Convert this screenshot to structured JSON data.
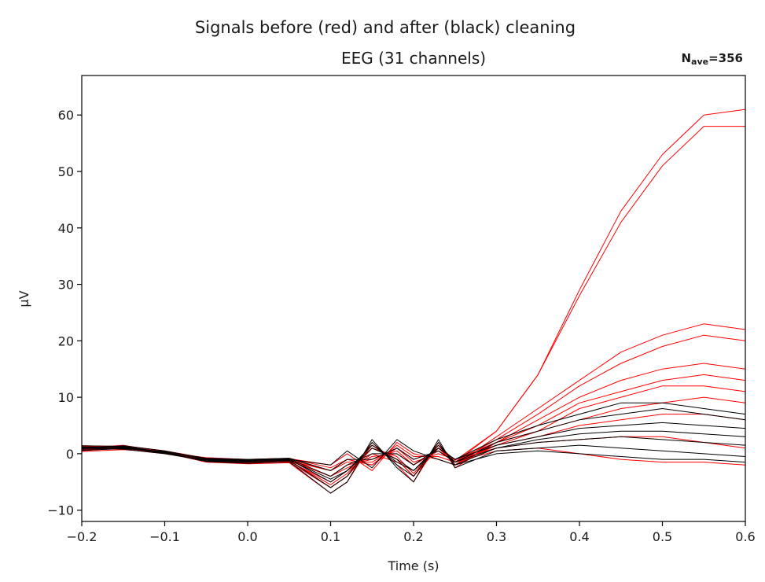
{
  "chart_data": {
    "type": "line",
    "suptitle": "Signals before (red) and after (black) cleaning",
    "title": "EEG (31 channels)",
    "nave_label": {
      "base": "N",
      "sub": "ave",
      "value": "=356"
    },
    "xlabel": "Time (s)",
    "ylabel": "µV",
    "xlim": [
      -0.2,
      0.6
    ],
    "ylim": [
      -12,
      67
    ],
    "xticks": [
      -0.2,
      -0.1,
      0.0,
      0.1,
      0.2,
      0.3,
      0.4,
      0.5,
      0.6
    ],
    "xtick_labels": [
      "−0.2",
      "−0.1",
      "0.0",
      "0.1",
      "0.2",
      "0.3",
      "0.4",
      "0.5",
      "0.6"
    ],
    "yticks": [
      -10,
      0,
      10,
      20,
      30,
      40,
      50,
      60
    ],
    "ytick_labels": [
      "−10",
      "0",
      "10",
      "20",
      "30",
      "40",
      "50",
      "60"
    ],
    "grid": false,
    "colors": {
      "before": "#ff0000",
      "after": "#000000"
    },
    "series": [
      {
        "name": "before",
        "color": "#ff0000",
        "x": [
          -0.2,
          -0.15,
          -0.1,
          -0.05,
          0.0,
          0.05,
          0.1,
          0.12,
          0.15,
          0.18,
          0.2,
          0.23,
          0.25,
          0.3,
          0.35,
          0.4,
          0.45,
          0.5,
          0.55,
          0.6
        ],
        "y": [
          1,
          1.5,
          0.3,
          -1.2,
          -1.5,
          -1.5,
          -6,
          -4,
          1,
          -1,
          -4,
          1,
          -1.5,
          4,
          14,
          29,
          43,
          53,
          60,
          61
        ]
      },
      {
        "name": "before",
        "color": "#ff0000",
        "x": [
          -0.2,
          -0.15,
          -0.1,
          -0.05,
          0.0,
          0.05,
          0.1,
          0.12,
          0.15,
          0.18,
          0.2,
          0.23,
          0.25,
          0.3,
          0.35,
          0.4,
          0.45,
          0.5,
          0.55,
          0.6
        ],
        "y": [
          0.8,
          1.2,
          0.2,
          -1.0,
          -1.2,
          -1.3,
          -5.5,
          -3.5,
          1,
          -0.5,
          -3.5,
          1.5,
          -1.2,
          4,
          14,
          28,
          41,
          51,
          58,
          58
        ]
      },
      {
        "name": "before",
        "color": "#ff0000",
        "x": [
          -0.2,
          -0.15,
          -0.1,
          -0.05,
          0.0,
          0.05,
          0.1,
          0.12,
          0.15,
          0.18,
          0.2,
          0.23,
          0.25,
          0.3,
          0.35,
          0.4,
          0.45,
          0.5,
          0.55,
          0.6
        ],
        "y": [
          1.2,
          1.0,
          0.1,
          -1.3,
          -1.6,
          -1.2,
          -4,
          -2,
          -1,
          0.5,
          -2,
          1,
          -2,
          3,
          8,
          13,
          18,
          21,
          23,
          22
        ]
      },
      {
        "name": "before",
        "color": "#ff0000",
        "x": [
          -0.2,
          -0.15,
          -0.1,
          -0.05,
          0.0,
          0.05,
          0.1,
          0.12,
          0.15,
          0.18,
          0.2,
          0.23,
          0.25,
          0.3,
          0.35,
          0.4,
          0.45,
          0.5,
          0.55,
          0.6
        ],
        "y": [
          0.5,
          1.1,
          0.4,
          -0.9,
          -1.4,
          -1.0,
          -3,
          -1,
          -2,
          1,
          -1,
          0.5,
          -1.5,
          2.5,
          7,
          12,
          16,
          19,
          21,
          20
        ]
      },
      {
        "name": "before",
        "color": "#ff0000",
        "x": [
          -0.2,
          -0.15,
          -0.1,
          -0.05,
          0.0,
          0.05,
          0.1,
          0.12,
          0.15,
          0.18,
          0.2,
          0.23,
          0.25,
          0.3,
          0.35,
          0.4,
          0.45,
          0.5,
          0.55,
          0.6
        ],
        "y": [
          1.4,
          1.3,
          0.2,
          -1.5,
          -1.8,
          -1.6,
          -7,
          -5,
          2,
          -2,
          -5,
          2,
          -2.5,
          2,
          6,
          10,
          13,
          15,
          16,
          15
        ]
      },
      {
        "name": "before",
        "color": "#ff0000",
        "x": [
          -0.2,
          -0.15,
          -0.1,
          -0.05,
          0.0,
          0.05,
          0.1,
          0.12,
          0.15,
          0.18,
          0.2,
          0.23,
          0.25,
          0.3,
          0.35,
          0.4,
          0.45,
          0.5,
          0.55,
          0.6
        ],
        "y": [
          0.6,
          0.9,
          0.3,
          -1.1,
          -1.3,
          -1.4,
          -5,
          -3,
          0,
          -1.5,
          -3,
          1,
          -1,
          2,
          5,
          9,
          11,
          13,
          14,
          13
        ]
      },
      {
        "name": "before",
        "color": "#ff0000",
        "x": [
          -0.2,
          -0.15,
          -0.1,
          -0.05,
          0.0,
          0.05,
          0.1,
          0.12,
          0.15,
          0.18,
          0.2,
          0.23,
          0.25,
          0.3,
          0.35,
          0.4,
          0.45,
          0.5,
          0.55,
          0.6
        ],
        "y": [
          0.9,
          1.4,
          0.5,
          -0.8,
          -1.1,
          -0.9,
          -2,
          0,
          -3,
          2,
          0,
          -1,
          -2,
          2,
          4,
          8,
          10,
          12,
          12,
          11
        ]
      },
      {
        "name": "before",
        "color": "#ff0000",
        "x": [
          -0.2,
          -0.15,
          -0.1,
          -0.05,
          0.0,
          0.05,
          0.1,
          0.12,
          0.15,
          0.18,
          0.2,
          0.23,
          0.25,
          0.3,
          0.35,
          0.4,
          0.45,
          0.5,
          0.55,
          0.6
        ],
        "y": [
          1.1,
          0.8,
          0.0,
          -1.2,
          -1.5,
          -1.1,
          -6,
          -4,
          1.5,
          -1,
          -4,
          1.5,
          -2,
          1.5,
          4,
          6,
          8,
          9,
          10,
          9
        ]
      },
      {
        "name": "before",
        "color": "#ff0000",
        "x": [
          -0.2,
          -0.15,
          -0.1,
          -0.05,
          0.0,
          0.05,
          0.1,
          0.12,
          0.15,
          0.18,
          0.2,
          0.23,
          0.25,
          0.3,
          0.35,
          0.4,
          0.45,
          0.5,
          0.55,
          0.6
        ],
        "y": [
          0.7,
          1.0,
          0.3,
          -1.0,
          -1.2,
          -1.0,
          -4,
          -2.5,
          -0.5,
          0,
          -2,
          0.5,
          -1.5,
          1.5,
          3,
          5,
          6,
          7,
          7,
          6
        ]
      },
      {
        "name": "before",
        "color": "#ff0000",
        "x": [
          -0.2,
          -0.15,
          -0.1,
          -0.05,
          0.0,
          0.05,
          0.1,
          0.12,
          0.15,
          0.18,
          0.2,
          0.23,
          0.25,
          0.3,
          0.35,
          0.4,
          0.45,
          0.5,
          0.55,
          0.6
        ],
        "y": [
          1.3,
          1.2,
          0.1,
          -1.4,
          -1.7,
          -1.3,
          -3,
          -1.5,
          -1.5,
          1,
          -1.5,
          0,
          -1,
          1,
          2,
          2.5,
          3,
          3,
          2,
          1
        ]
      },
      {
        "name": "before",
        "color": "#ff0000",
        "x": [
          -0.2,
          -0.15,
          -0.1,
          -0.05,
          0.0,
          0.05,
          0.1,
          0.12,
          0.15,
          0.18,
          0.2,
          0.23,
          0.25,
          0.3,
          0.35,
          0.4,
          0.45,
          0.5,
          0.55,
          0.6
        ],
        "y": [
          0.4,
          0.7,
          0.2,
          -0.7,
          -1.0,
          -0.8,
          -2.5,
          -1,
          -2,
          1.5,
          -0.5,
          -0.5,
          -1.5,
          0.5,
          1,
          0,
          -1,
          -1.5,
          -1.5,
          -2
        ]
      },
      {
        "name": "after",
        "color": "#000000",
        "x": [
          -0.2,
          -0.15,
          -0.1,
          -0.05,
          0.0,
          0.05,
          0.1,
          0.12,
          0.15,
          0.18,
          0.2,
          0.23,
          0.25,
          0.3,
          0.35,
          0.4,
          0.45,
          0.5,
          0.55,
          0.6
        ],
        "y": [
          1.0,
          1.2,
          0.3,
          -1.1,
          -1.3,
          -1.0,
          -5,
          -3,
          1,
          -1,
          -3,
          1.5,
          -1.5,
          2,
          4,
          6,
          7,
          8,
          7,
          6
        ]
      },
      {
        "name": "after",
        "color": "#000000",
        "x": [
          -0.2,
          -0.15,
          -0.1,
          -0.05,
          0.0,
          0.05,
          0.1,
          0.12,
          0.15,
          0.18,
          0.2,
          0.23,
          0.25,
          0.3,
          0.35,
          0.4,
          0.45,
          0.5,
          0.55,
          0.6
        ],
        "y": [
          0.8,
          1.0,
          0.2,
          -1.0,
          -1.2,
          -0.9,
          -4,
          -2,
          0,
          0,
          -2,
          1,
          -1,
          1.5,
          3,
          4.5,
          5,
          5.5,
          5,
          4.5
        ]
      },
      {
        "name": "after",
        "color": "#000000",
        "x": [
          -0.2,
          -0.15,
          -0.1,
          -0.05,
          0.0,
          0.05,
          0.1,
          0.12,
          0.15,
          0.18,
          0.2,
          0.23,
          0.25,
          0.3,
          0.35,
          0.4,
          0.45,
          0.5,
          0.55,
          0.6
        ],
        "y": [
          1.2,
          1.1,
          0.1,
          -1.3,
          -1.5,
          -1.2,
          -6,
          -4,
          2,
          -2,
          -4,
          2,
          -2,
          1,
          2.5,
          3.5,
          4,
          4,
          3.5,
          3
        ]
      },
      {
        "name": "after",
        "color": "#000000",
        "x": [
          -0.2,
          -0.15,
          -0.1,
          -0.05,
          0.0,
          0.05,
          0.1,
          0.12,
          0.15,
          0.18,
          0.2,
          0.23,
          0.25,
          0.3,
          0.35,
          0.4,
          0.45,
          0.5,
          0.55,
          0.6
        ],
        "y": [
          0.6,
          0.9,
          0.4,
          -0.8,
          -1.0,
          -0.8,
          -3,
          -1,
          -1,
          1,
          -1,
          0.5,
          -1.5,
          1,
          2,
          2.5,
          3,
          2.5,
          2,
          1.5
        ]
      },
      {
        "name": "after",
        "color": "#000000",
        "x": [
          -0.2,
          -0.15,
          -0.1,
          -0.05,
          0.0,
          0.05,
          0.1,
          0.12,
          0.15,
          0.18,
          0.2,
          0.23,
          0.25,
          0.3,
          0.35,
          0.4,
          0.45,
          0.5,
          0.55,
          0.6
        ],
        "y": [
          1.4,
          1.3,
          0.2,
          -1.4,
          -1.7,
          -1.4,
          -7,
          -5,
          2.5,
          -2.5,
          -5,
          2.5,
          -2.5,
          0.5,
          1,
          1.5,
          1,
          0.5,
          0,
          -0.5
        ]
      },
      {
        "name": "after",
        "color": "#000000",
        "x": [
          -0.2,
          -0.15,
          -0.1,
          -0.05,
          0.0,
          0.05,
          0.1,
          0.12,
          0.15,
          0.18,
          0.2,
          0.23,
          0.25,
          0.3,
          0.35,
          0.4,
          0.45,
          0.5,
          0.55,
          0.6
        ],
        "y": [
          0.9,
          1.4,
          0.5,
          -0.9,
          -1.1,
          -1.0,
          -2,
          0.5,
          -2.5,
          2.5,
          0.5,
          -1,
          -2,
          0,
          0.5,
          0,
          -0.5,
          -1,
          -1,
          -1.5
        ]
      },
      {
        "name": "after",
        "color": "#000000",
        "x": [
          -0.2,
          -0.15,
          -0.1,
          -0.05,
          0.0,
          0.05,
          0.1,
          0.12,
          0.15,
          0.18,
          0.2,
          0.23,
          0.25,
          0.3,
          0.35,
          0.4,
          0.45,
          0.5,
          0.55,
          0.6
        ],
        "y": [
          1.1,
          0.8,
          0.0,
          -1.2,
          -1.4,
          -1.1,
          -4.5,
          -3,
          1.5,
          -1.5,
          -3,
          1,
          -1,
          2.5,
          5,
          7,
          9,
          9,
          8,
          7
        ]
      }
    ]
  }
}
